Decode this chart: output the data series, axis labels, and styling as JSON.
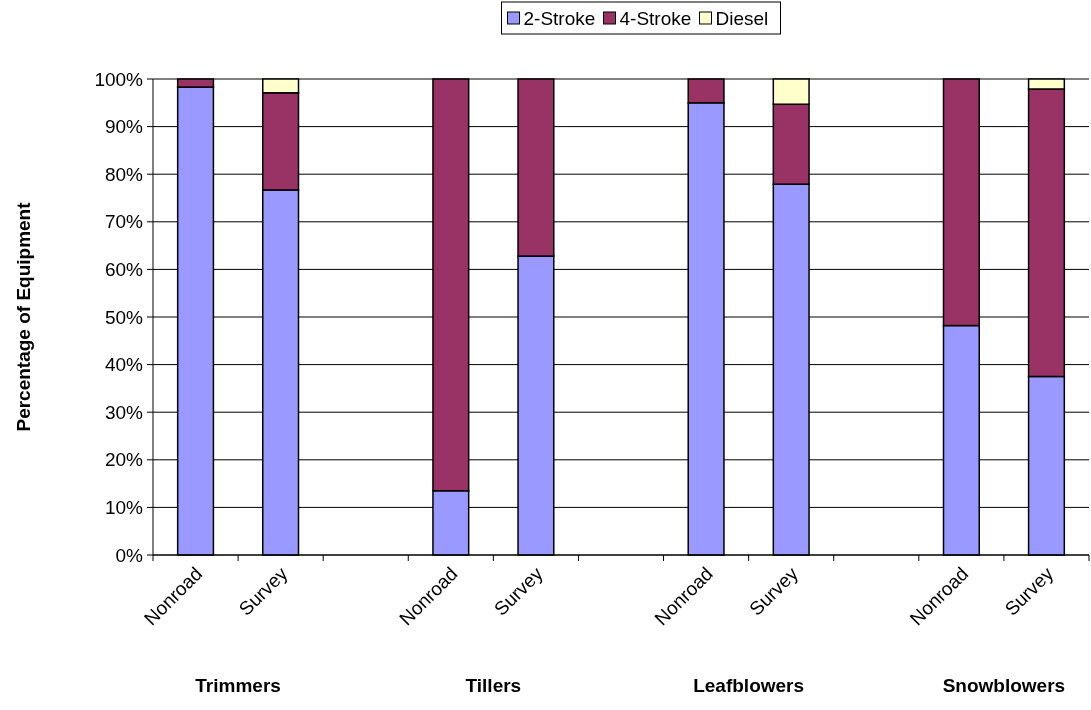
{
  "chart_data": {
    "type": "bar",
    "stacked": true,
    "ylabel": "Percentage of Equipment",
    "categories": [
      "Nonroad",
      "Survey",
      null,
      "Nonroad",
      "Survey",
      null,
      "Nonroad",
      "Survey",
      null,
      "Nonroad",
      "Survey"
    ],
    "series": [
      {
        "name": "2-Stroke",
        "color": "#9999ff",
        "values": [
          98.3,
          76.7,
          null,
          13.5,
          62.8,
          null,
          95.0,
          77.9,
          null,
          48.2,
          37.5
        ]
      },
      {
        "name": "4-Stroke",
        "color": "#993366",
        "values": [
          1.7,
          20.4,
          null,
          86.5,
          37.2,
          null,
          5.0,
          16.8,
          null,
          51.8,
          60.4
        ]
      },
      {
        "name": "Diesel",
        "color": "#ffffcc",
        "values": [
          0,
          2.9,
          null,
          0,
          0,
          null,
          0,
          5.3,
          null,
          0,
          2.1
        ]
      }
    ],
    "ylim": [
      0,
      100
    ],
    "yticks": [
      {
        "value": 0,
        "label": "0%"
      },
      {
        "value": 10,
        "label": "10%"
      },
      {
        "value": 20,
        "label": "20%"
      },
      {
        "value": 30,
        "label": "30%"
      },
      {
        "value": 40,
        "label": "40%"
      },
      {
        "value": 50,
        "label": "50%"
      },
      {
        "value": 60,
        "label": "60%"
      },
      {
        "value": 70,
        "label": "70%"
      },
      {
        "value": 80,
        "label": "80%"
      },
      {
        "value": 90,
        "label": "90%"
      },
      {
        "value": 100,
        "label": "100%"
      }
    ],
    "grid": "y",
    "legend": "top",
    "annotations": [
      "Trimmers",
      "Tillers",
      "Leafblowers",
      "Snowblowers"
    ]
  }
}
